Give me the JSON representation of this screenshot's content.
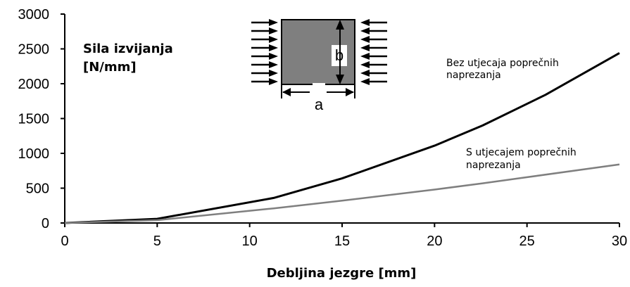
{
  "chart_data": {
    "type": "line",
    "ylabel_lines": [
      "Sila izvijanja",
      "[N/mm]"
    ],
    "xlabel": "Debljina jezgre [mm]",
    "xlim": [
      0,
      30
    ],
    "ylim": [
      0,
      3000
    ],
    "x_ticks": [
      "0",
      "5",
      "10",
      "15",
      "20",
      "25",
      "30"
    ],
    "y_ticks": [
      "0",
      "500",
      "1000",
      "1500",
      "2000",
      "2500",
      "3000"
    ],
    "grid": false,
    "series": [
      {
        "name": "Bez utjecaja poprečnih naprezanja",
        "name_lines": [
          "Bez utjecaja poprečnih",
          "naprezanja"
        ],
        "color": "#000000",
        "x": [
          0,
          5,
          11.3,
          15,
          20,
          22.6,
          26,
          30
        ],
        "values": [
          0,
          60,
          360,
          640,
          1110,
          1400,
          1840,
          2440
        ]
      },
      {
        "name": "S utjecajem poprečnih naprezanja",
        "name_lines": [
          "S utjecajem poprečnih",
          "naprezanja"
        ],
        "color": "#7f7f7f",
        "x": [
          0,
          5,
          11.3,
          15,
          20,
          22.6,
          30
        ],
        "values": [
          0,
          40,
          210,
          320,
          480,
          570,
          840
        ]
      }
    ]
  },
  "inset": {
    "dim_a": "a",
    "dim_b": "b",
    "panel_color": "#7f7f7f"
  }
}
